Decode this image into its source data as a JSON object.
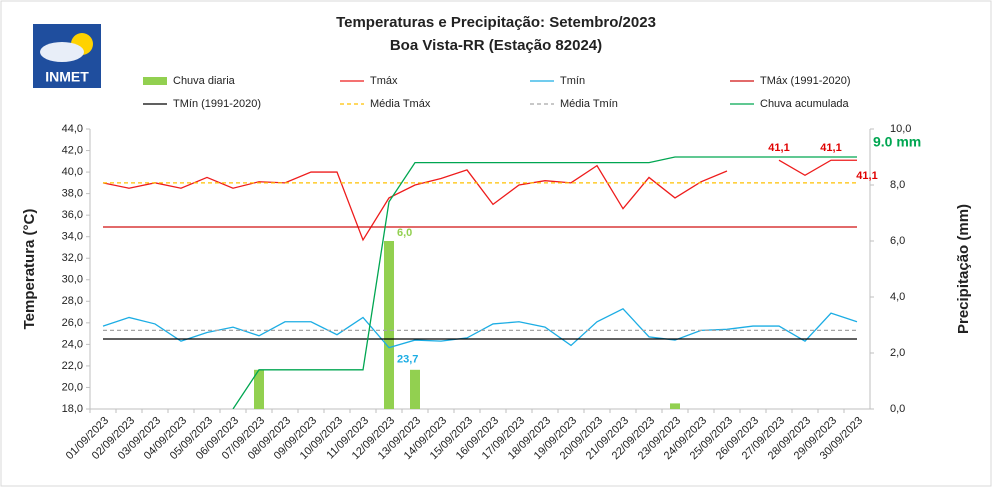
{
  "logo_text": "INMET",
  "chart_data": {
    "type": "bar",
    "title": "Temperaturas e Precipitação: Setembro/2023",
    "subtitle": "Boa Vista-RR (Estação 82024)",
    "y_label": "Temperatura (°C)",
    "y2_label": "Precipitação (mm)",
    "categories": [
      "01/09/2023",
      "02/09/2023",
      "03/09/2023",
      "04/09/2023",
      "05/09/2023",
      "06/09/2023",
      "07/09/2023",
      "08/09/2023",
      "09/09/2023",
      "10/09/2023",
      "11/09/2023",
      "12/09/2023",
      "13/09/2023",
      "14/09/2023",
      "15/09/2023",
      "16/09/2023",
      "17/09/2023",
      "18/09/2023",
      "19/09/2023",
      "20/09/2023",
      "21/09/2023",
      "22/09/2023",
      "23/09/2023",
      "24/09/2023",
      "25/09/2023",
      "26/09/2023",
      "27/09/2023",
      "28/09/2023",
      "29/09/2023",
      "30/09/2023"
    ],
    "ylim": [
      18,
      44
    ],
    "yticks": [
      {
        "value": 18,
        "label": "18,0"
      },
      {
        "value": 20,
        "label": "20,0"
      },
      {
        "value": 22,
        "label": "22,0"
      },
      {
        "value": 24,
        "label": "24,0"
      },
      {
        "value": 26,
        "label": "26,0"
      },
      {
        "value": 28,
        "label": "28,0"
      },
      {
        "value": 30,
        "label": "30,0"
      },
      {
        "value": 32,
        "label": "32,0"
      },
      {
        "value": 34,
        "label": "34,0"
      },
      {
        "value": 36,
        "label": "36,0"
      },
      {
        "value": 38,
        "label": "38,0"
      },
      {
        "value": 40,
        "label": "40,0"
      },
      {
        "value": 42,
        "label": "42,0"
      },
      {
        "value": 44,
        "label": "44,0"
      }
    ],
    "y2lim": [
      0,
      10
    ],
    "y2ticks": [
      {
        "value": 0,
        "label": "0,0"
      },
      {
        "value": 2,
        "label": "2,0"
      },
      {
        "value": 4,
        "label": "4,0"
      },
      {
        "value": 6,
        "label": "6,0"
      },
      {
        "value": 8,
        "label": "8,0"
      },
      {
        "value": 10,
        "label": "10,0"
      }
    ],
    "series": [
      {
        "name": "Chuva diaria",
        "type": "bar",
        "axis": "y2",
        "color": "#92d050",
        "values": [
          0,
          0,
          0,
          0,
          0,
          0,
          1.4,
          0,
          0,
          0,
          0,
          6.0,
          1.4,
          0,
          0,
          0,
          0,
          0,
          0,
          0,
          0,
          0,
          0.2,
          0,
          0,
          0,
          0,
          0,
          0,
          0
        ],
        "value_labels": [
          null,
          null,
          null,
          null,
          null,
          null,
          null,
          null,
          null,
          null,
          null,
          "6,0",
          null,
          null,
          null,
          null,
          null,
          null,
          null,
          null,
          null,
          null,
          null,
          null,
          null,
          null,
          null,
          null,
          null,
          null
        ]
      },
      {
        "name": "Tmáx",
        "type": "line",
        "color": "#ee1c1c",
        "values": [
          39.0,
          38.5,
          39.0,
          38.5,
          39.5,
          38.5,
          39.1,
          39.0,
          40.0,
          40.0,
          33.7,
          37.6,
          38.8,
          39.4,
          40.2,
          37.0,
          38.8,
          39.2,
          39.0,
          40.6,
          36.6,
          39.5,
          37.6,
          39.1,
          40.1,
          null,
          41.1,
          39.7,
          41.1,
          41.1
        ],
        "value_labels": [
          null,
          null,
          null,
          null,
          null,
          null,
          null,
          null,
          null,
          null,
          null,
          null,
          null,
          null,
          null,
          null,
          null,
          null,
          null,
          null,
          null,
          null,
          null,
          null,
          null,
          null,
          "41,1",
          null,
          "41,1",
          "41,1"
        ]
      },
      {
        "name": "Tmín",
        "type": "line",
        "color": "#1cade4",
        "values": [
          25.7,
          26.5,
          25.9,
          24.3,
          25.1,
          25.6,
          24.8,
          26.1,
          26.1,
          24.9,
          26.5,
          23.7,
          24.4,
          24.3,
          24.6,
          25.9,
          26.1,
          25.6,
          23.9,
          26.1,
          27.3,
          24.7,
          24.4,
          25.3,
          25.4,
          25.7,
          25.7,
          24.3,
          26.9,
          26.1
        ],
        "value_labels": [
          null,
          null,
          null,
          null,
          null,
          null,
          null,
          null,
          null,
          null,
          null,
          "23,7",
          null,
          null,
          null,
          null,
          null,
          null,
          null,
          null,
          null,
          null,
          null,
          null,
          null,
          null,
          null,
          null,
          null,
          null
        ]
      },
      {
        "name": "TMáx (1991-2020)",
        "type": "line",
        "color": "#d01010",
        "values": [
          34.9,
          34.9,
          34.9,
          34.9,
          34.9,
          34.9,
          34.9,
          34.9,
          34.9,
          34.9,
          34.9,
          34.9,
          34.9,
          34.9,
          34.9,
          34.9,
          34.9,
          34.9,
          34.9,
          34.9,
          34.9,
          34.9,
          34.9,
          34.9,
          34.9,
          34.9,
          34.9,
          34.9,
          34.9,
          34.9
        ]
      },
      {
        "name": "TMín (1991-2020)",
        "type": "line",
        "color": "#000000",
        "values": [
          24.5,
          24.5,
          24.5,
          24.5,
          24.5,
          24.5,
          24.5,
          24.5,
          24.5,
          24.5,
          24.5,
          24.5,
          24.5,
          24.5,
          24.5,
          24.5,
          24.5,
          24.5,
          24.5,
          24.5,
          24.5,
          24.5,
          24.5,
          24.5,
          24.5,
          24.5,
          24.5,
          24.5,
          24.5,
          24.5
        ]
      },
      {
        "name": "Média Tmáx",
        "type": "line",
        "dashed": true,
        "color": "#ffc000",
        "values": [
          39.0,
          39.0,
          39.0,
          39.0,
          39.0,
          39.0,
          39.0,
          39.0,
          39.0,
          39.0,
          39.0,
          39.0,
          39.0,
          39.0,
          39.0,
          39.0,
          39.0,
          39.0,
          39.0,
          39.0,
          39.0,
          39.0,
          39.0,
          39.0,
          39.0,
          39.0,
          39.0,
          39.0,
          39.0,
          39.0
        ]
      },
      {
        "name": "Média Tmín",
        "type": "line",
        "dashed": true,
        "color": "#a6a6a6",
        "values": [
          25.3,
          25.3,
          25.3,
          25.3,
          25.3,
          25.3,
          25.3,
          25.3,
          25.3,
          25.3,
          25.3,
          25.3,
          25.3,
          25.3,
          25.3,
          25.3,
          25.3,
          25.3,
          25.3,
          25.3,
          25.3,
          25.3,
          25.3,
          25.3,
          25.3,
          25.3,
          25.3,
          25.3,
          25.3,
          25.3
        ]
      },
      {
        "name": "Chuva acumulada",
        "type": "line",
        "axis": "y2",
        "color": "#00a651",
        "values": [
          null,
          null,
          null,
          null,
          null,
          0,
          1.4,
          1.4,
          1.4,
          1.4,
          1.4,
          7.4,
          8.8,
          8.8,
          8.8,
          8.8,
          8.8,
          8.8,
          8.8,
          8.8,
          8.8,
          8.8,
          9.0,
          9.0,
          9.0,
          9.0,
          9.0,
          9.0,
          9.0,
          9.0
        ],
        "value_labels": [
          null,
          null,
          null,
          null,
          null,
          null,
          null,
          null,
          null,
          null,
          null,
          null,
          null,
          null,
          null,
          null,
          null,
          null,
          null,
          null,
          null,
          null,
          null,
          null,
          null,
          null,
          null,
          null,
          null,
          "9.0 mm"
        ]
      }
    ]
  }
}
